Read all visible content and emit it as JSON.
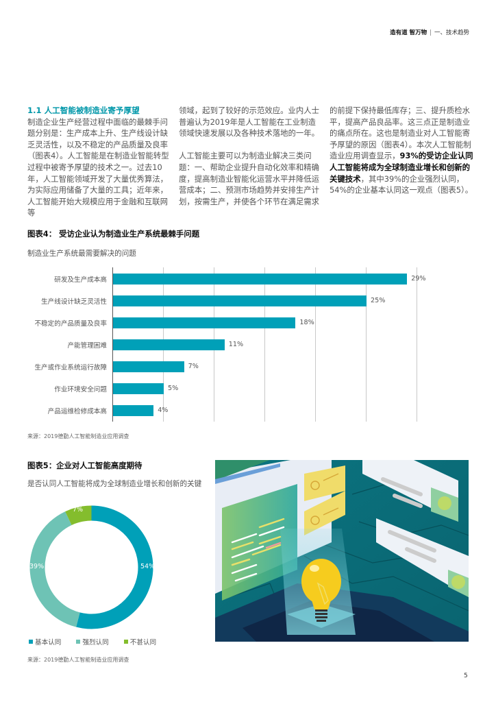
{
  "header": {
    "brand": "造有道 智万物",
    "separator": "|",
    "section": "一、技术趋势"
  },
  "article": {
    "section_heading": "1.1 人工智能被制造业寄予厚望",
    "col1_text": "制造企业生产经营过程中面临的最棘手问题分别是：生产成本上升、生产线设计缺乏灵活性，以及不稳定的产品质量及良率（图表4）。人工智能是在制造业智能转型过程中被寄予厚望的技术之一。过去10年，人工智能领域开发了大量优秀算法，为实际应用储备了大量的工具；近年来，人工智能开始大规模应用于金融和互联网等",
    "col2_para1": "领域，起到了较好的示范效应。业内人士普遍认为2019年是人工智能在工业制造领域快速发展以及各种技术落地的一年。",
    "col2_para2": "人工智能主要可以为制造业解决三类问题：一、帮助企业提升自动化效率和精确度，提高制造业智能化运营水平并降低运营成本；二、预测市场趋势并安排生产计划，按需生产，并使各个环节在满足需求",
    "col3_text_a": "的前提下保持最低库存；三、提升质检水平，提高产品良品率。这三点正是制造业的痛点所在。这也是制造业对人工智能寄予厚望的原因（图表4）。本次人工智能制造业应用调查显示，",
    "col3_bold": "93%的受访企业认同人工智能将成为全球制造业增长和创新的关键技术",
    "col3_text_b": "，其中39%的企业强烈认同，54%的企业基本认同这一观点（图表5）。"
  },
  "figure4": {
    "title": "图表4： 受访企业认为制造业生产系统最棘手问题",
    "subtitle": "制造业生产系统最需要解决的问题",
    "source": "来源：2019德勤人工智能制造业应用调查"
  },
  "figure5": {
    "title": "图表5：企业对人工智能高度期待",
    "subtitle": "是否认同人工智能将成为全球制造业增长和创新的关键",
    "source": "来源：2019德勤人工智能制造业应用调查",
    "legend": [
      "基本认同",
      "强烈认同",
      "不甚认同"
    ]
  },
  "chart_data": [
    {
      "type": "bar",
      "orientation": "horizontal",
      "title": "图表4： 受访企业认为制造业生产系统最棘手问题",
      "subtitle": "制造业生产系统最需要解决的问题",
      "categories": [
        "研发及生产成本高",
        "生产线设计缺乏灵活性",
        "不稳定的产品质量及良率",
        "产能管理困难",
        "生产或作业系统运行故障",
        "作业环境安全问题",
        "产品运维检修成本高"
      ],
      "values": [
        29,
        25,
        18,
        11,
        7,
        5,
        4
      ],
      "value_labels": [
        "29%",
        "25%",
        "18%",
        "11%",
        "7%",
        "5%",
        "4%"
      ],
      "xlabel": "",
      "ylabel": "",
      "xlim": [
        0,
        30
      ],
      "grid": true,
      "grid_step": 5,
      "color": "#00a0b8",
      "source": "来源：2019德勤人工智能制造业应用调查"
    },
    {
      "type": "pie",
      "donut": true,
      "title": "图表5：企业对人工智能高度期待",
      "subtitle": "是否认同人工智能将成为全球制造业增长和创新的关键",
      "categories": [
        "基本认同",
        "强烈认同",
        "不甚认同"
      ],
      "values": [
        54,
        39,
        7
      ],
      "value_labels": [
        "54%",
        "39%",
        "7%"
      ],
      "colors": [
        "#00a0b8",
        "#6ec3b5",
        "#84bd2d"
      ],
      "legend_position": "bottom",
      "source": "来源：2019德勤人工智能制造业应用调查"
    }
  ],
  "colors": {
    "accent": "#0097a9",
    "bar": "#00a0b8",
    "donut_basic": "#00a0b8",
    "donut_strong": "#6ec3b5",
    "donut_not": "#84bd2d"
  },
  "page_number": "5"
}
